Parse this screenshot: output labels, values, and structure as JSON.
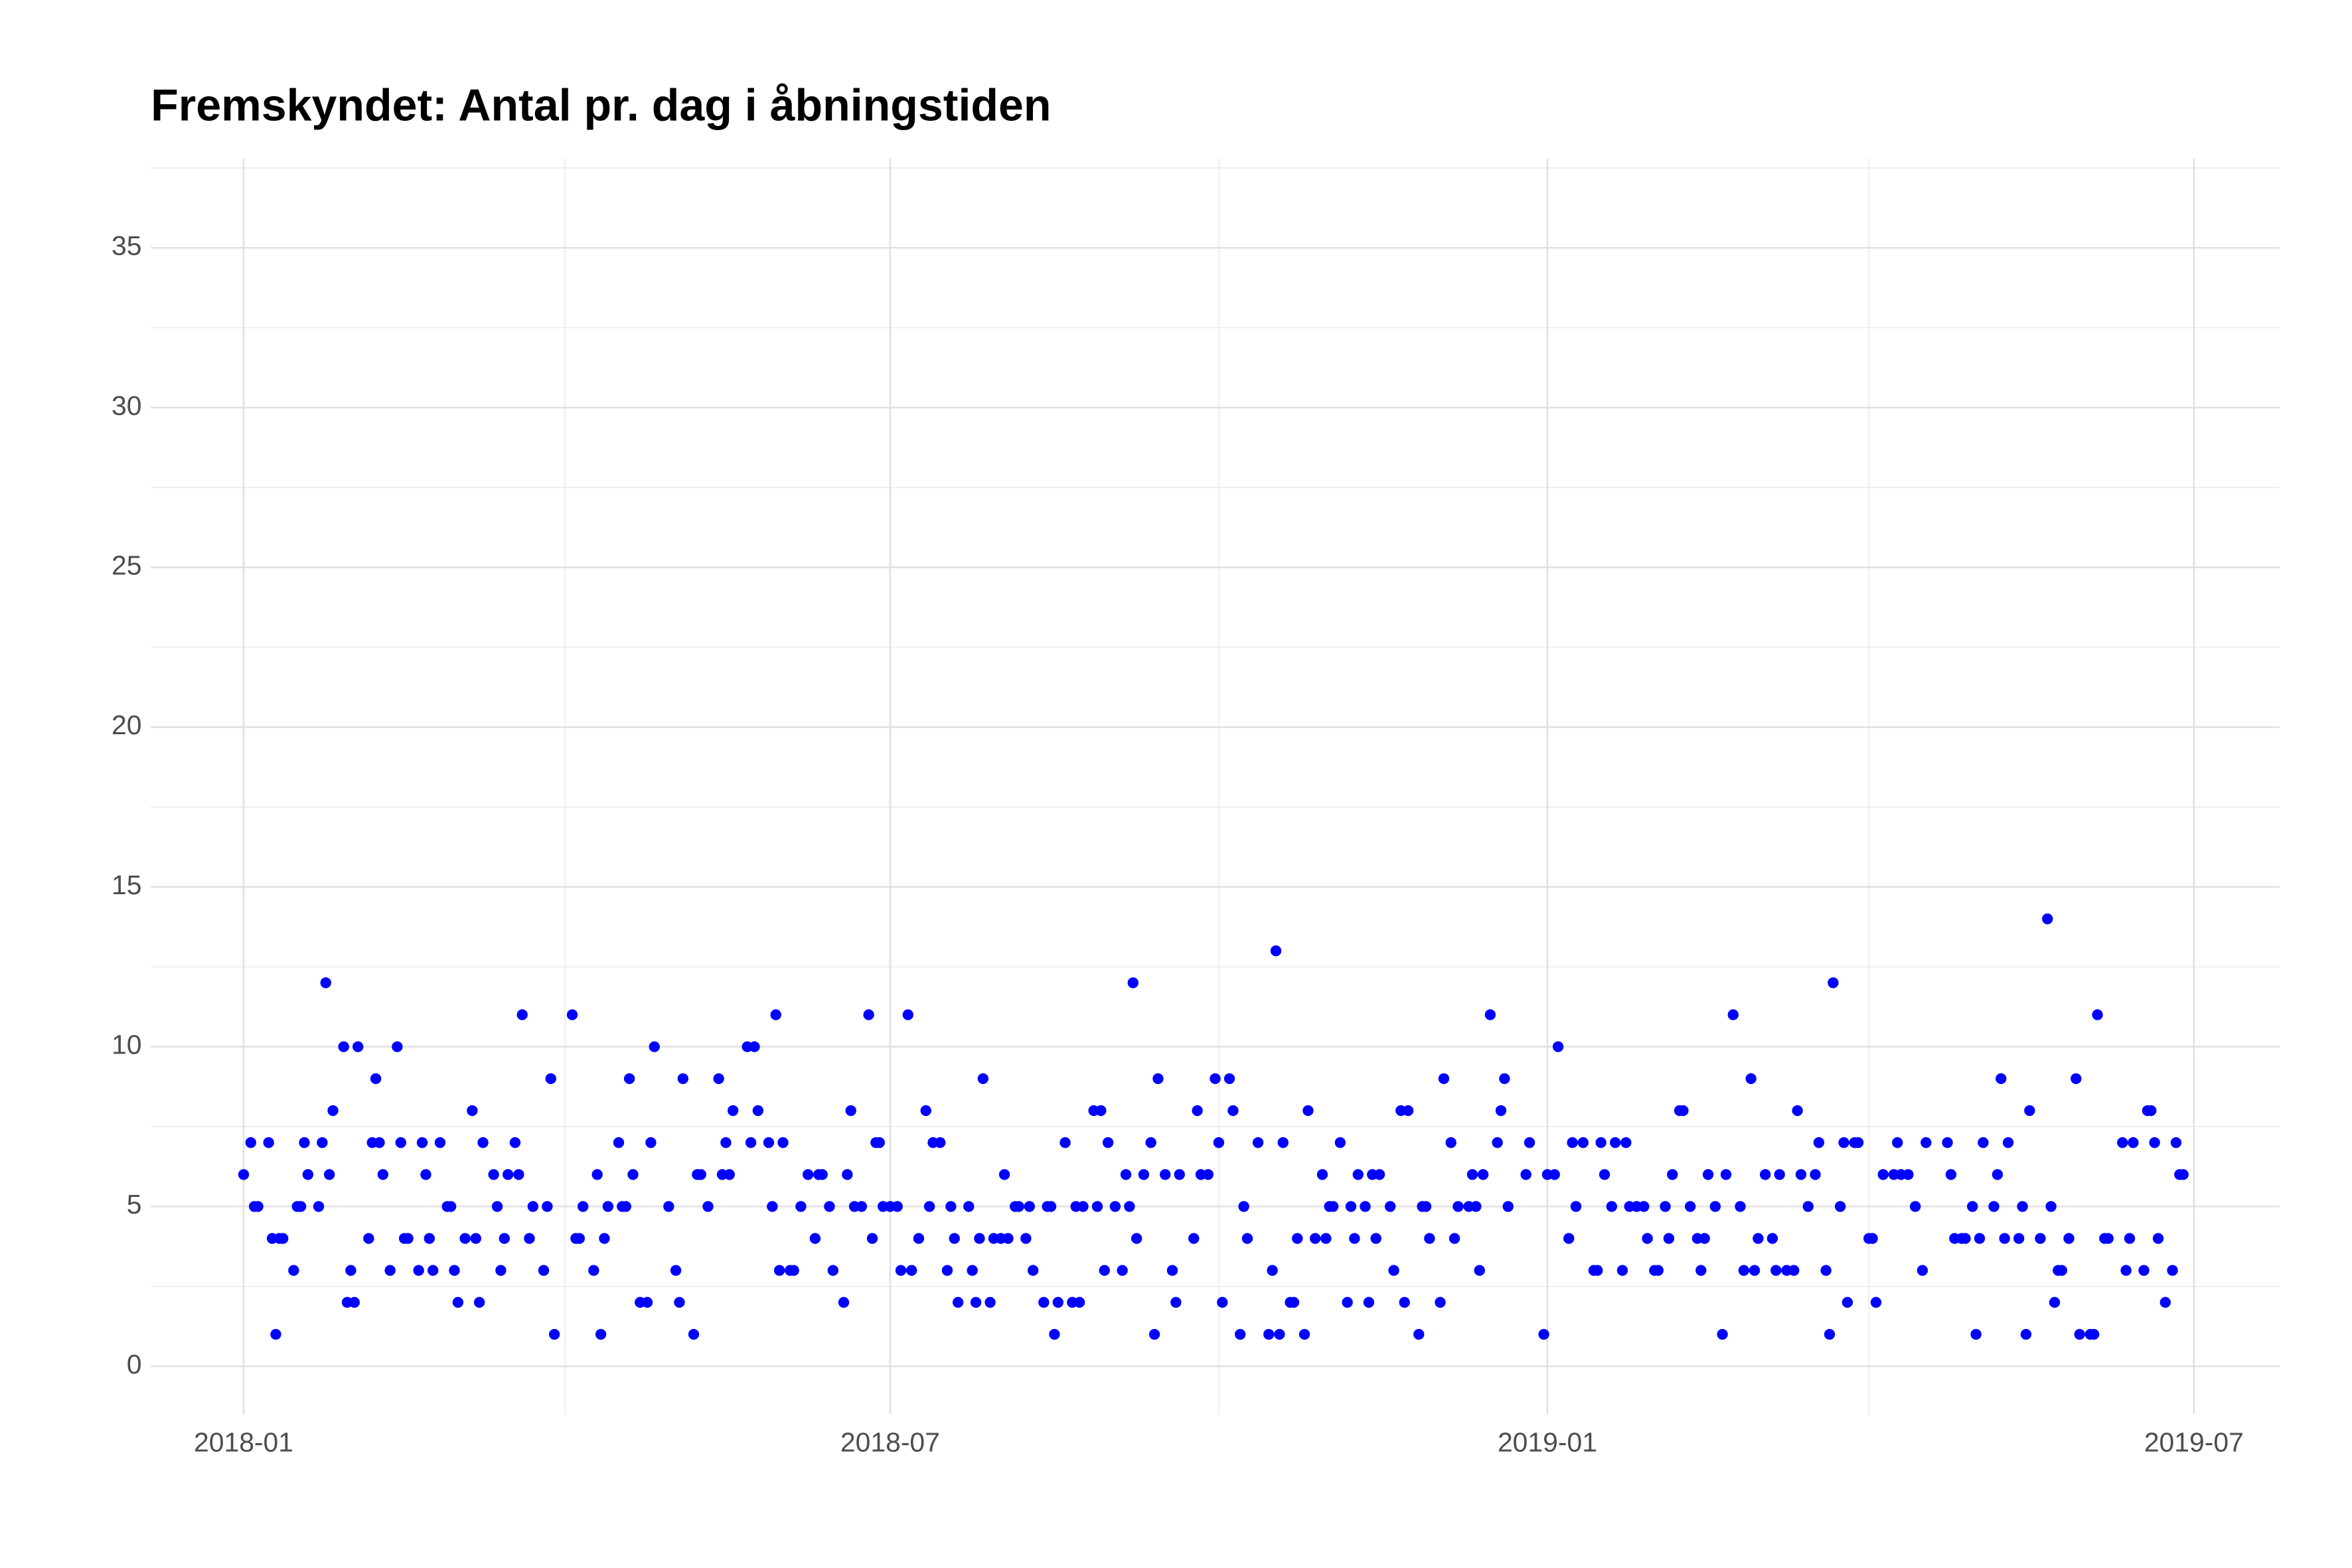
{
  "chart_data": {
    "type": "scatter",
    "title": "Fremskyndet: Antal pr. dag i åbningstiden",
    "color": "#0000ff",
    "grid": true,
    "xlim": [
      -26,
      570
    ],
    "xticks": [
      {
        "value": 0,
        "label": "2018-01"
      },
      {
        "value": 181,
        "label": "2018-07"
      },
      {
        "value": 365,
        "label": "2019-01"
      },
      {
        "value": 546,
        "label": "2019-07"
      }
    ],
    "xminor": [
      90,
      273,
      455
    ],
    "ylim": [
      -1.5,
      37.8
    ],
    "yticks": [
      0,
      5,
      10,
      15,
      20,
      25,
      30,
      35
    ],
    "yminor": [
      2.5,
      7.5,
      12.5,
      17.5,
      22.5,
      27.5,
      32.5,
      37.5
    ],
    "x": [
      0,
      2,
      3,
      4,
      7,
      8,
      9,
      10,
      11,
      14,
      15,
      16,
      17,
      18,
      21,
      22,
      23,
      24,
      25,
      28,
      29,
      30,
      31,
      32,
      35,
      36,
      37,
      38,
      39,
      41,
      43,
      44,
      45,
      46,
      49,
      50,
      51,
      52,
      53,
      55,
      57,
      58,
      59,
      60,
      62,
      64,
      65,
      66,
      67,
      70,
      71,
      72,
      73,
      74,
      76,
      77,
      78,
      80,
      81,
      84,
      85,
      86,
      87,
      92,
      93,
      94,
      95,
      98,
      99,
      100,
      101,
      102,
      105,
      106,
      107,
      108,
      109,
      111,
      113,
      114,
      115,
      119,
      121,
      122,
      123,
      126,
      127,
      128,
      130,
      133,
      134,
      135,
      136,
      137,
      141,
      142,
      143,
      144,
      147,
      148,
      149,
      150,
      151,
      153,
      154,
      156,
      158,
      160,
      161,
      162,
      164,
      165,
      168,
      169,
      170,
      171,
      173,
      175,
      176,
      177,
      178,
      179,
      181,
      183,
      184,
      186,
      187,
      189,
      191,
      192,
      193,
      195,
      197,
      198,
      199,
      200,
      203,
      204,
      205,
      206,
      207,
      209,
      210,
      212,
      213,
      214,
      216,
      217,
      219,
      220,
      221,
      224,
      225,
      226,
      227,
      228,
      230,
      232,
      233,
      234,
      235,
      238,
      239,
      240,
      241,
      242,
      244,
      246,
      247,
      248,
      249,
      250,
      252,
      254,
      255,
      256,
      258,
      260,
      261,
      262,
      266,
      267,
      268,
      270,
      272,
      273,
      274,
      276,
      277,
      279,
      280,
      281,
      284,
      287,
      288,
      289,
      290,
      291,
      293,
      294,
      295,
      297,
      298,
      300,
      302,
      303,
      304,
      305,
      307,
      309,
      310,
      311,
      312,
      314,
      315,
      316,
      317,
      318,
      321,
      322,
      324,
      325,
      326,
      329,
      330,
      331,
      332,
      335,
      336,
      338,
      339,
      340,
      343,
      344,
      345,
      346,
      347,
      349,
      351,
      352,
      353,
      354,
      359,
      360,
      364,
      365,
      367,
      368,
      371,
      372,
      373,
      375,
      378,
      379,
      380,
      381,
      383,
      384,
      386,
      387,
      388,
      390,
      392,
      393,
      395,
      396,
      398,
      399,
      400,
      402,
      403,
      405,
      407,
      408,
      409,
      410,
      412,
      414,
      415,
      417,
      419,
      420,
      422,
      423,
      424,
      426,
      428,
      429,
      430,
      432,
      434,
      435,
      436,
      438,
      440,
      441,
      443,
      444,
      445,
      447,
      448,
      449,
      451,
      452,
      455,
      456,
      457,
      459,
      462,
      463,
      464,
      466,
      468,
      470,
      471,
      477,
      478,
      479,
      481,
      482,
      484,
      485,
      486,
      487,
      490,
      491,
      492,
      493,
      494,
      497,
      498,
      499,
      500,
      503,
      505,
      506,
      507,
      508,
      509,
      511,
      513,
      514,
      517,
      518,
      519,
      521,
      522,
      526,
      527,
      528,
      529,
      532,
      533,
      534,
      535,
      536,
      538,
      540,
      541,
      542,
      543
    ],
    "values": [
      6,
      7,
      5,
      5,
      7,
      4,
      1,
      4,
      4,
      3,
      5,
      5,
      7,
      6,
      5,
      7,
      12,
      6,
      8,
      10,
      2,
      3,
      2,
      10,
      4,
      7,
      9,
      7,
      6,
      3,
      10,
      7,
      4,
      4,
      3,
      7,
      6,
      4,
      3,
      7,
      5,
      5,
      3,
      2,
      4,
      8,
      4,
      2,
      7,
      6,
      5,
      3,
      4,
      6,
      7,
      6,
      11,
      4,
      5,
      3,
      5,
      9,
      1,
      11,
      4,
      4,
      5,
      3,
      6,
      1,
      4,
      5,
      7,
      5,
      5,
      9,
      6,
      2,
      2,
      7,
      10,
      5,
      3,
      2,
      9,
      1,
      6,
      6,
      5,
      9,
      6,
      7,
      6,
      8,
      10,
      7,
      10,
      8,
      7,
      5,
      11,
      3,
      7,
      3,
      3,
      5,
      6,
      4,
      6,
      6,
      5,
      3,
      2,
      6,
      8,
      5,
      5,
      11,
      4,
      7,
      7,
      5,
      5,
      5,
      3,
      11,
      3,
      4,
      8,
      5,
      7,
      7,
      3,
      5,
      4,
      2,
      5,
      3,
      2,
      4,
      9,
      2,
      4,
      4,
      6,
      4,
      5,
      5,
      4,
      5,
      3,
      2,
      5,
      5,
      1,
      2,
      7,
      2,
      5,
      2,
      5,
      8,
      5,
      8,
      3,
      7,
      5,
      3,
      6,
      5,
      12,
      4,
      6,
      7,
      1,
      9,
      6,
      3,
      2,
      6,
      4,
      8,
      6,
      6,
      9,
      7,
      2,
      9,
      8,
      1,
      5,
      4,
      7,
      1,
      3,
      13,
      1,
      7,
      2,
      2,
      4,
      1,
      8,
      4,
      6,
      4,
      5,
      5,
      7,
      2,
      5,
      4,
      6,
      5,
      2,
      6,
      4,
      6,
      5,
      3,
      8,
      2,
      8,
      1,
      5,
      5,
      4,
      2,
      9,
      7,
      4,
      5,
      5,
      6,
      5,
      3,
      6,
      11,
      7,
      8,
      9,
      5,
      6,
      7,
      1,
      6,
      6,
      10,
      4,
      7,
      5,
      7,
      3,
      3,
      7,
      6,
      5,
      7,
      3,
      7,
      5,
      5,
      5,
      4,
      3,
      3,
      5,
      4,
      6,
      8,
      8,
      5,
      4,
      3,
      4,
      6,
      5,
      1,
      6,
      11,
      5,
      3,
      9,
      3,
      4,
      6,
      4,
      3,
      6,
      3,
      3,
      8,
      6,
      5,
      6,
      7,
      3,
      1,
      12,
      5,
      7,
      2,
      7,
      7,
      4,
      4,
      2,
      6,
      6,
      7,
      6,
      6,
      5,
      3,
      7,
      7,
      6,
      4,
      4,
      4,
      5,
      1,
      4,
      7,
      5,
      6,
      9,
      4,
      7,
      4,
      5,
      1,
      8,
      4,
      14,
      5,
      2,
      3,
      3,
      4,
      9,
      1,
      1,
      1,
      11,
      4,
      4,
      7,
      3,
      4,
      7,
      3,
      8,
      8,
      7,
      4,
      2,
      3,
      7,
      6,
      6
    ]
  }
}
